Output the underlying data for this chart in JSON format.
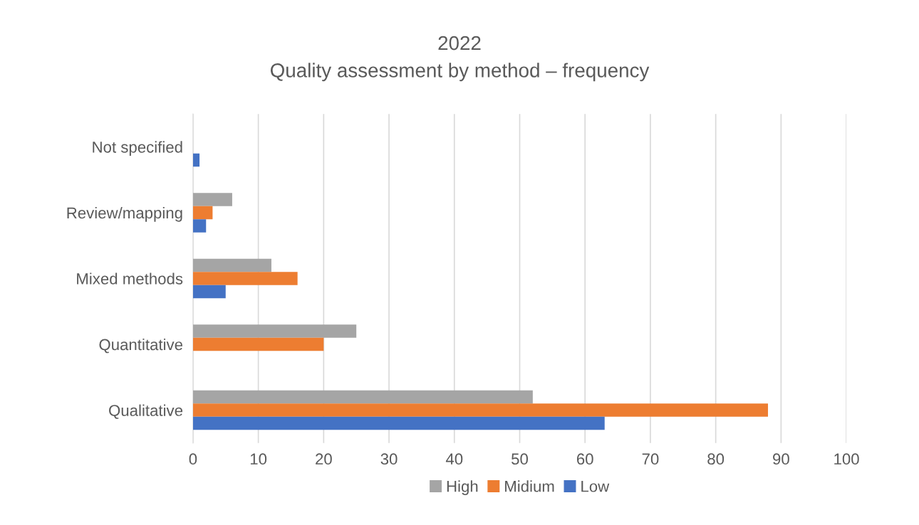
{
  "chart_data": {
    "type": "bar",
    "orientation": "horizontal",
    "title": "2022",
    "subtitle": "Quality assessment by method – frequency",
    "categories": [
      "Not specified",
      "Review/mapping",
      "Mixed methods",
      "Quantitative",
      "Qualitative"
    ],
    "series": [
      {
        "name": "High",
        "color": "#a5a5a5",
        "values": [
          0,
          6,
          12,
          25,
          52
        ]
      },
      {
        "name": "Midium",
        "color": "#ed7d31",
        "values": [
          0,
          3,
          16,
          20,
          88
        ]
      },
      {
        "name": "Low",
        "color": "#4472c4",
        "values": [
          1,
          2,
          5,
          0,
          63
        ]
      }
    ],
    "xlim": [
      0,
      100
    ],
    "xticks": [
      0,
      10,
      20,
      30,
      40,
      50,
      60,
      70,
      80,
      90,
      100
    ],
    "grid": "x",
    "legend": "bottom"
  }
}
